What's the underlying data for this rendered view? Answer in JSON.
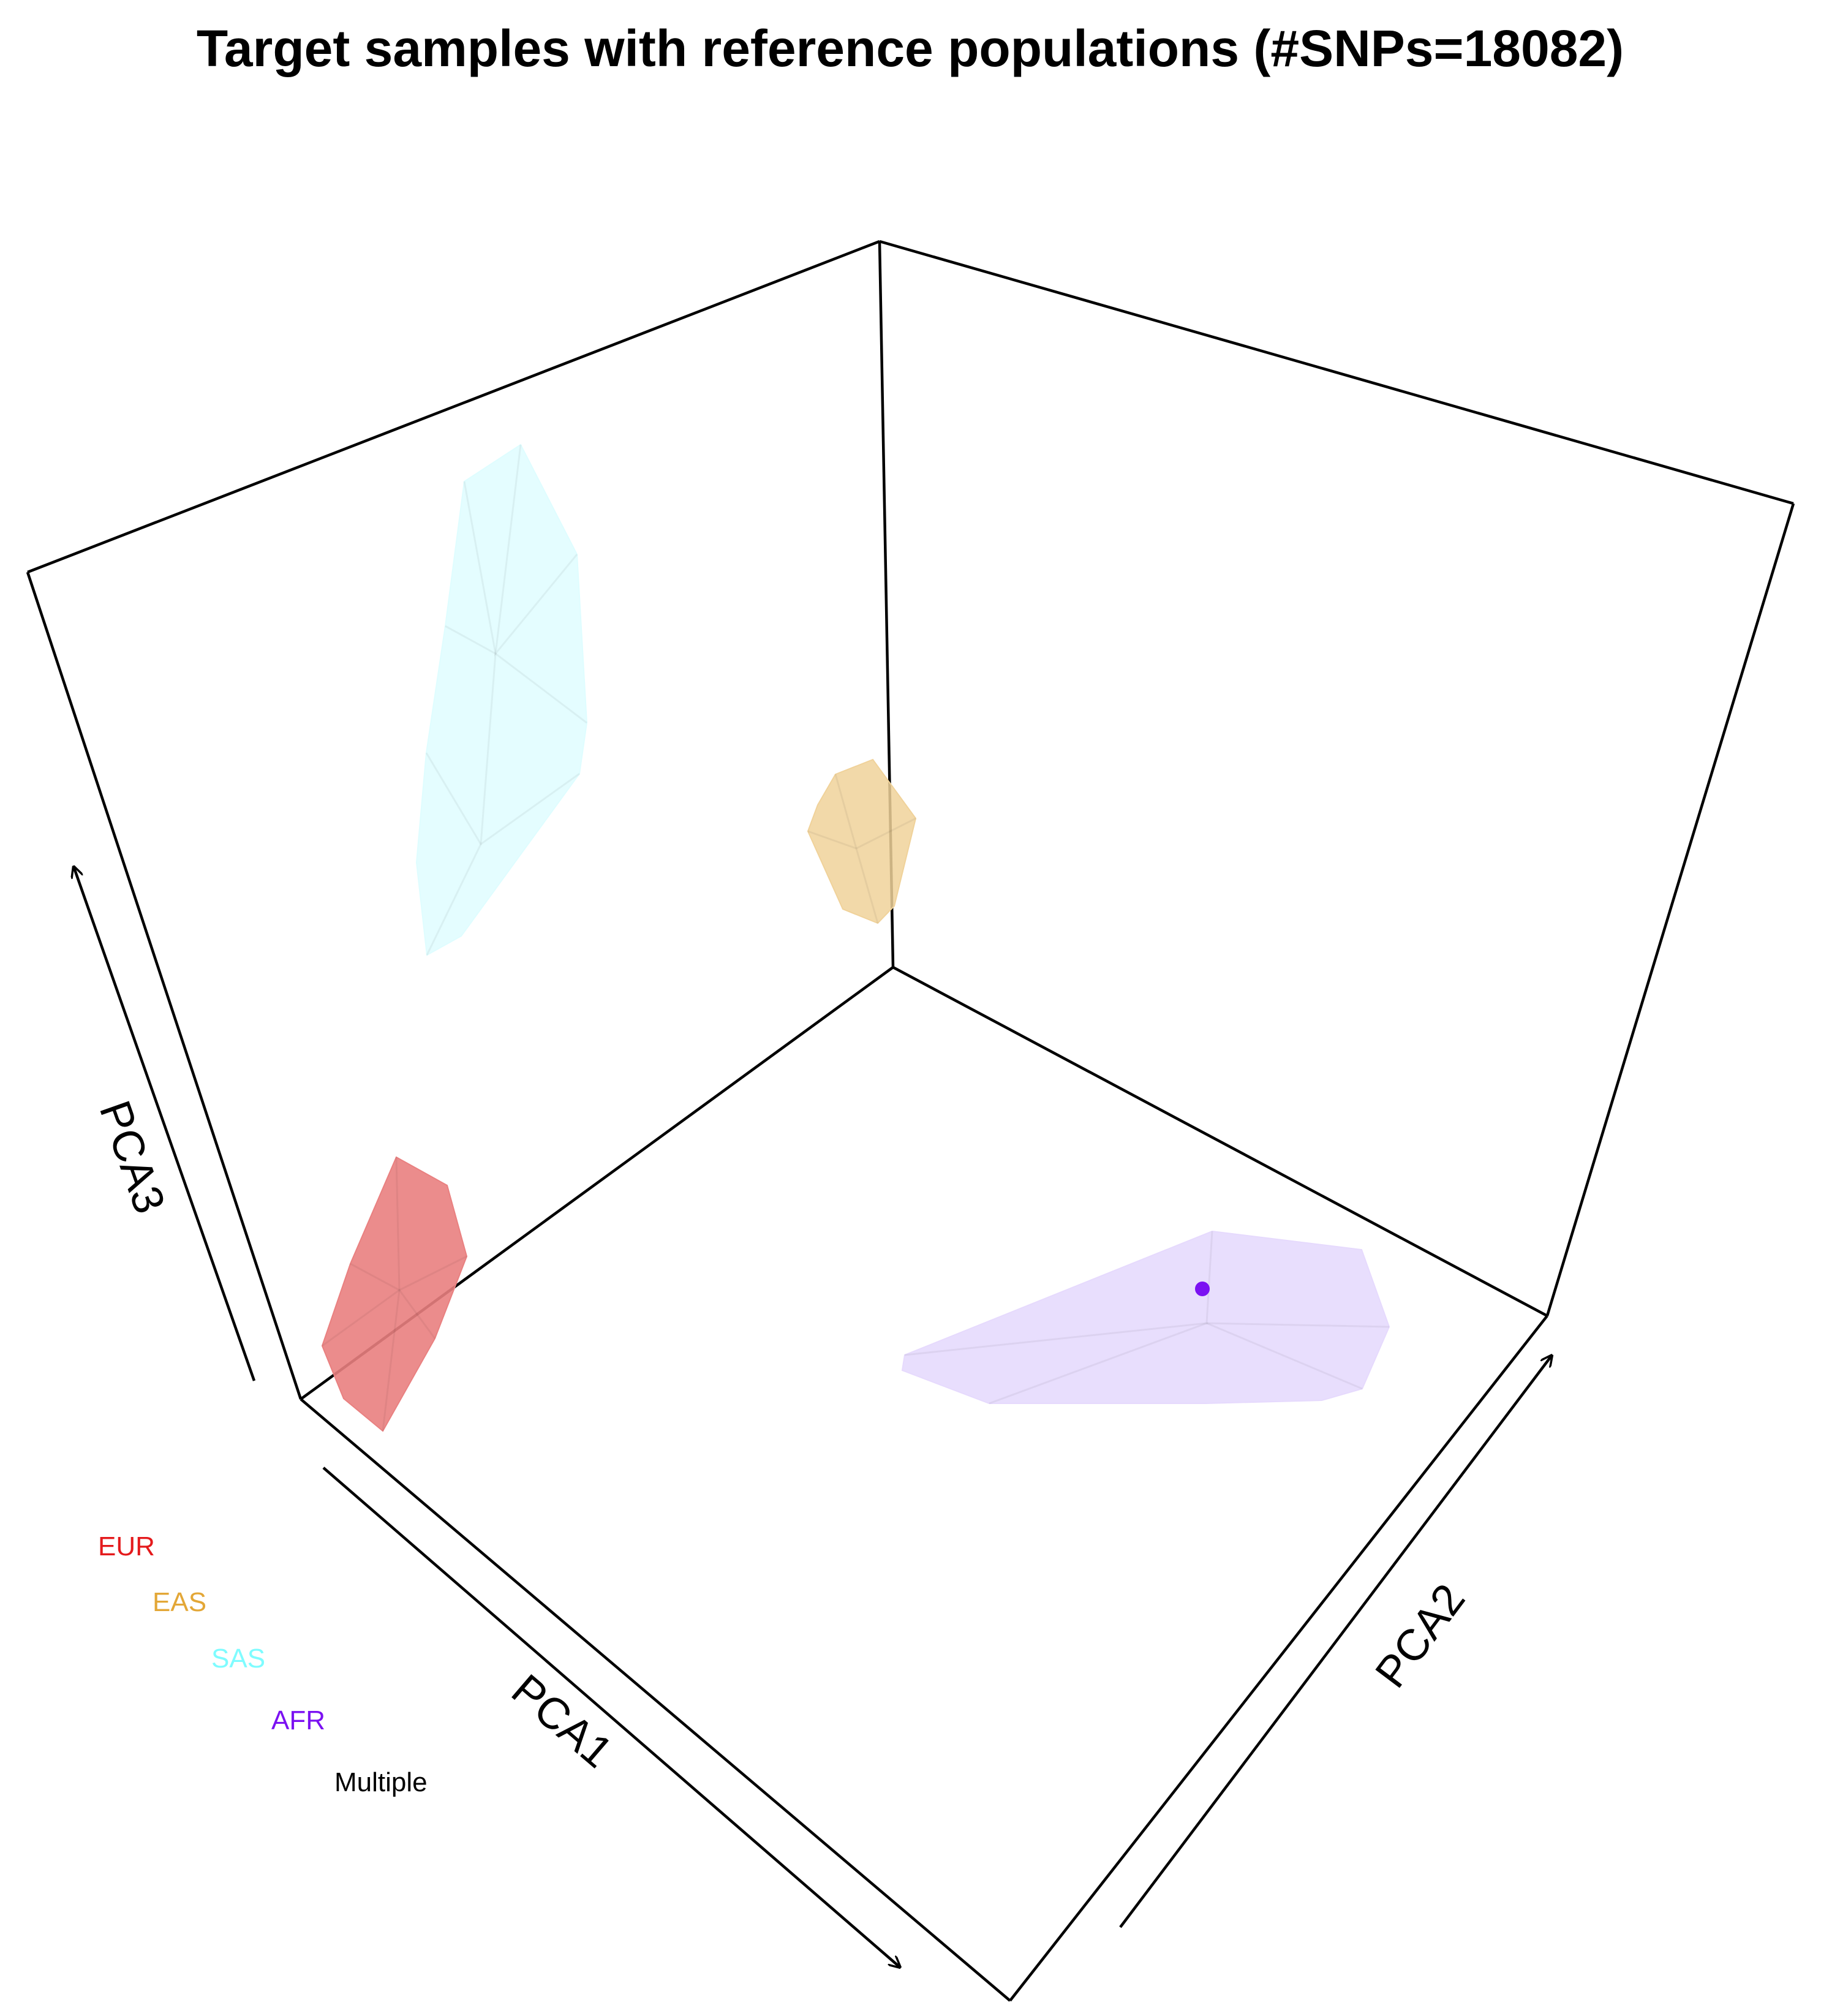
{
  "chart_data": {
    "type": "scatter",
    "projection": "3d",
    "title": "Target samples with reference populations (#SNPs=18082)",
    "axes": {
      "x": "PCA1",
      "y": "PCA2",
      "z": "PCA3"
    },
    "legend_position": "bottom-left",
    "legend": [
      {
        "name": "EUR",
        "color": "#e41a1c"
      },
      {
        "name": "EAS",
        "color": "#e3a737"
      },
      {
        "name": "SAS",
        "color": "#7ffcff"
      },
      {
        "name": "AFR",
        "color": "#7b11f2"
      },
      {
        "name": "Multiple",
        "color": "#000000"
      }
    ],
    "reference_hulls": [
      {
        "population": "SAS",
        "color": "#dffdff",
        "opacity": 0.85
      },
      {
        "population": "EAS",
        "color": "#f0d29a",
        "opacity": 0.85
      },
      {
        "population": "EUR",
        "color": "#e98080",
        "opacity": 0.9
      },
      {
        "population": "AFR",
        "color": "#e6dafd",
        "opacity": 0.9
      }
    ],
    "target_points": [
      {
        "population": "AFR",
        "color": "#7b11f2"
      }
    ]
  }
}
